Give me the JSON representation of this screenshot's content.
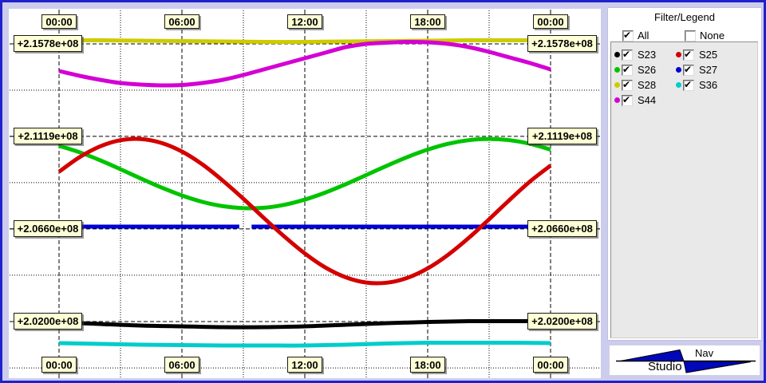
{
  "colors": {
    "window_background": "#ccccee",
    "window_border": "#2121cc",
    "plot_background": "#ffffff",
    "grid": "#000000",
    "label_box_fill": "#ffffd6",
    "legend_box_fill": "#e9e9e9",
    "logo_blue": "#0008b8"
  },
  "chart_data": {
    "type": "line",
    "x": {
      "tick_labels_top": [
        "00:00",
        "06:00",
        "12:00",
        "18:00",
        "00:00"
      ],
      "tick_labels_bottom": [
        "00:00",
        "06:00",
        "12:00",
        "18:00",
        "00:00"
      ],
      "tick_hours": [
        0,
        6,
        12,
        18,
        24
      ],
      "minor_tick_hours": [
        3,
        9,
        15,
        21
      ],
      "range_hours": [
        0,
        24
      ]
    },
    "y": {
      "gridline_labels": [
        "+2.1578e+08",
        "+2.1119e+08",
        "+2.0660e+08",
        "+2.0200e+08"
      ],
      "gridline_values": [
        215780000,
        211190000,
        206600000,
        202000000
      ]
    },
    "draw_order": [
      "S28",
      "S26",
      "S27",
      "S23",
      "S36",
      "S25",
      "S44"
    ],
    "series": [
      {
        "name": "S23",
        "color": "#000000",
        "checked": true,
        "segments": [
          [
            [
              0,
              201960000
            ],
            [
              2,
              201881000
            ],
            [
              4,
              201802000
            ],
            [
              6,
              201762000
            ],
            [
              8,
              201722000
            ],
            [
              10,
              201722000
            ],
            [
              12,
              201762000
            ],
            [
              14,
              201841000
            ],
            [
              16,
              201920000
            ],
            [
              18,
              201980000
            ],
            [
              20,
              202019000
            ],
            [
              22,
              202019000
            ],
            [
              24,
              202019000
            ]
          ]
        ]
      },
      {
        "name": "S25",
        "color": "#d40000",
        "checked": true,
        "segments": [
          [
            [
              0,
              209436000
            ],
            [
              1,
              210157000
            ],
            [
              2,
              210691000
            ],
            [
              3,
              211000000
            ],
            [
              4,
              211060000
            ],
            [
              5,
              210866000
            ],
            [
              6,
              210438000
            ],
            [
              7,
              209796000
            ],
            [
              8,
              208989000
            ],
            [
              9,
              208094000
            ],
            [
              10,
              207139000
            ],
            [
              11,
              206220000
            ],
            [
              12,
              205381000
            ],
            [
              13,
              204684000
            ],
            [
              14,
              204197000
            ],
            [
              15,
              203935000
            ],
            [
              16,
              203927000
            ],
            [
              17,
              204165000
            ],
            [
              18,
              204640000
            ],
            [
              19,
              205317000
            ],
            [
              20,
              206145000
            ],
            [
              21,
              207076000
            ],
            [
              22,
              208038000
            ],
            [
              23,
              208953000
            ],
            [
              24,
              209741000
            ]
          ]
        ]
      },
      {
        "name": "S26",
        "color": "#00c400",
        "checked": true,
        "segments": [
          [
            [
              0,
              210724000
            ],
            [
              1,
              210404000
            ],
            [
              2,
              210008000
            ],
            [
              3,
              209560000
            ],
            [
              4,
              209097000
            ],
            [
              5,
              208654000
            ],
            [
              6,
              208258000
            ],
            [
              7,
              207941000
            ],
            [
              8,
              207727000
            ],
            [
              9,
              207628000
            ],
            [
              10,
              207648000
            ],
            [
              11,
              207794000
            ],
            [
              12,
              208052000
            ],
            [
              13,
              208400000
            ],
            [
              14,
              208816000
            ],
            [
              15,
              209271000
            ],
            [
              16,
              209731000
            ],
            [
              17,
              210162000
            ],
            [
              18,
              210535000
            ],
            [
              19,
              210824000
            ],
            [
              20,
              211002000
            ],
            [
              21,
              211065000
            ],
            [
              22,
              211002000
            ],
            [
              23,
              210824000
            ],
            [
              24,
              210531000
            ]
          ]
        ]
      },
      {
        "name": "S27",
        "color": "#0000d4",
        "checked": true,
        "segments": [
          [
            [
              0,
              206712000
            ],
            [
              8.8,
              206712000
            ]
          ],
          [
            [
              9.4,
              206712000
            ],
            [
              24,
              206712000
            ]
          ]
        ]
      },
      {
        "name": "S28",
        "color": "#cccc00",
        "checked": true,
        "segments": [
          [
            [
              0,
              215958000
            ],
            [
              2,
              215958000
            ],
            [
              4,
              215938000
            ],
            [
              6,
              215918000
            ],
            [
              8,
              215899000
            ],
            [
              10,
              215879000
            ],
            [
              12,
              215879000
            ],
            [
              14,
              215899000
            ],
            [
              16,
              215918000
            ],
            [
              18,
              215938000
            ],
            [
              20,
              215958000
            ],
            [
              22,
              215958000
            ],
            [
              24,
              215958000
            ]
          ]
        ]
      },
      {
        "name": "S36",
        "color": "#00cccc",
        "checked": true,
        "segments": [
          [
            [
              0,
              200930000
            ],
            [
              2,
              200891000
            ],
            [
              4,
              200851000
            ],
            [
              6,
              200831000
            ],
            [
              8,
              200812000
            ],
            [
              10,
              200812000
            ],
            [
              12,
              200812000
            ],
            [
              14,
              200851000
            ],
            [
              16,
              200911000
            ],
            [
              18,
              200950000
            ],
            [
              20,
              200950000
            ],
            [
              22,
              200950000
            ],
            [
              24,
              200930000
            ]
          ]
        ]
      },
      {
        "name": "S44",
        "color": "#d400d4",
        "checked": true,
        "segments": [
          [
            [
              0,
              214434000
            ],
            [
              1,
              214196000
            ],
            [
              2,
              213998000
            ],
            [
              3,
              213840000
            ],
            [
              4,
              213760000
            ],
            [
              5,
              213721000
            ],
            [
              6,
              213741000
            ],
            [
              7,
              213840000
            ],
            [
              8,
              213998000
            ],
            [
              9,
              214236000
            ],
            [
              10,
              214513000
            ],
            [
              11,
              214790000
            ],
            [
              12,
              215067000
            ],
            [
              13,
              215344000
            ],
            [
              14,
              215621000
            ],
            [
              15,
              215780000
            ],
            [
              16,
              215839000
            ],
            [
              17,
              215879000
            ],
            [
              18,
              215859000
            ],
            [
              19,
              215780000
            ],
            [
              20,
              215621000
            ],
            [
              21,
              215384000
            ],
            [
              22,
              215107000
            ],
            [
              23,
              214830000
            ],
            [
              24,
              214513000
            ]
          ]
        ]
      }
    ]
  },
  "legend": {
    "title": "Filter/Legend",
    "all_label": "All",
    "none_label": "None",
    "all_checked": true,
    "none_checked": false
  },
  "logo": {
    "nav": "Nav",
    "studio": "Studio"
  }
}
